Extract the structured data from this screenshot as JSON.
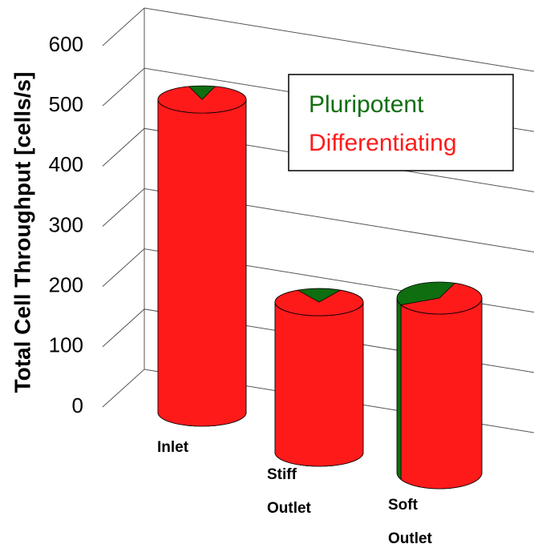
{
  "chart_data": {
    "type": "cylinder",
    "y_label": "Total Cell Throughput [cells/s]",
    "categories": [
      "Inlet",
      "Stiff Outlet",
      "Soft Outlet"
    ],
    "series": [
      {
        "name": "Pluripotent",
        "color": "#0f6e0f",
        "values": [
          50,
          40,
          110
        ]
      },
      {
        "name": "Differentiating",
        "color": "#ff1a1a",
        "values": [
          470,
          210,
          180
        ]
      }
    ],
    "ylim": [
      0,
      600
    ],
    "yticks": [
      0,
      100,
      200,
      300,
      400,
      500,
      600
    ],
    "grid": true
  }
}
